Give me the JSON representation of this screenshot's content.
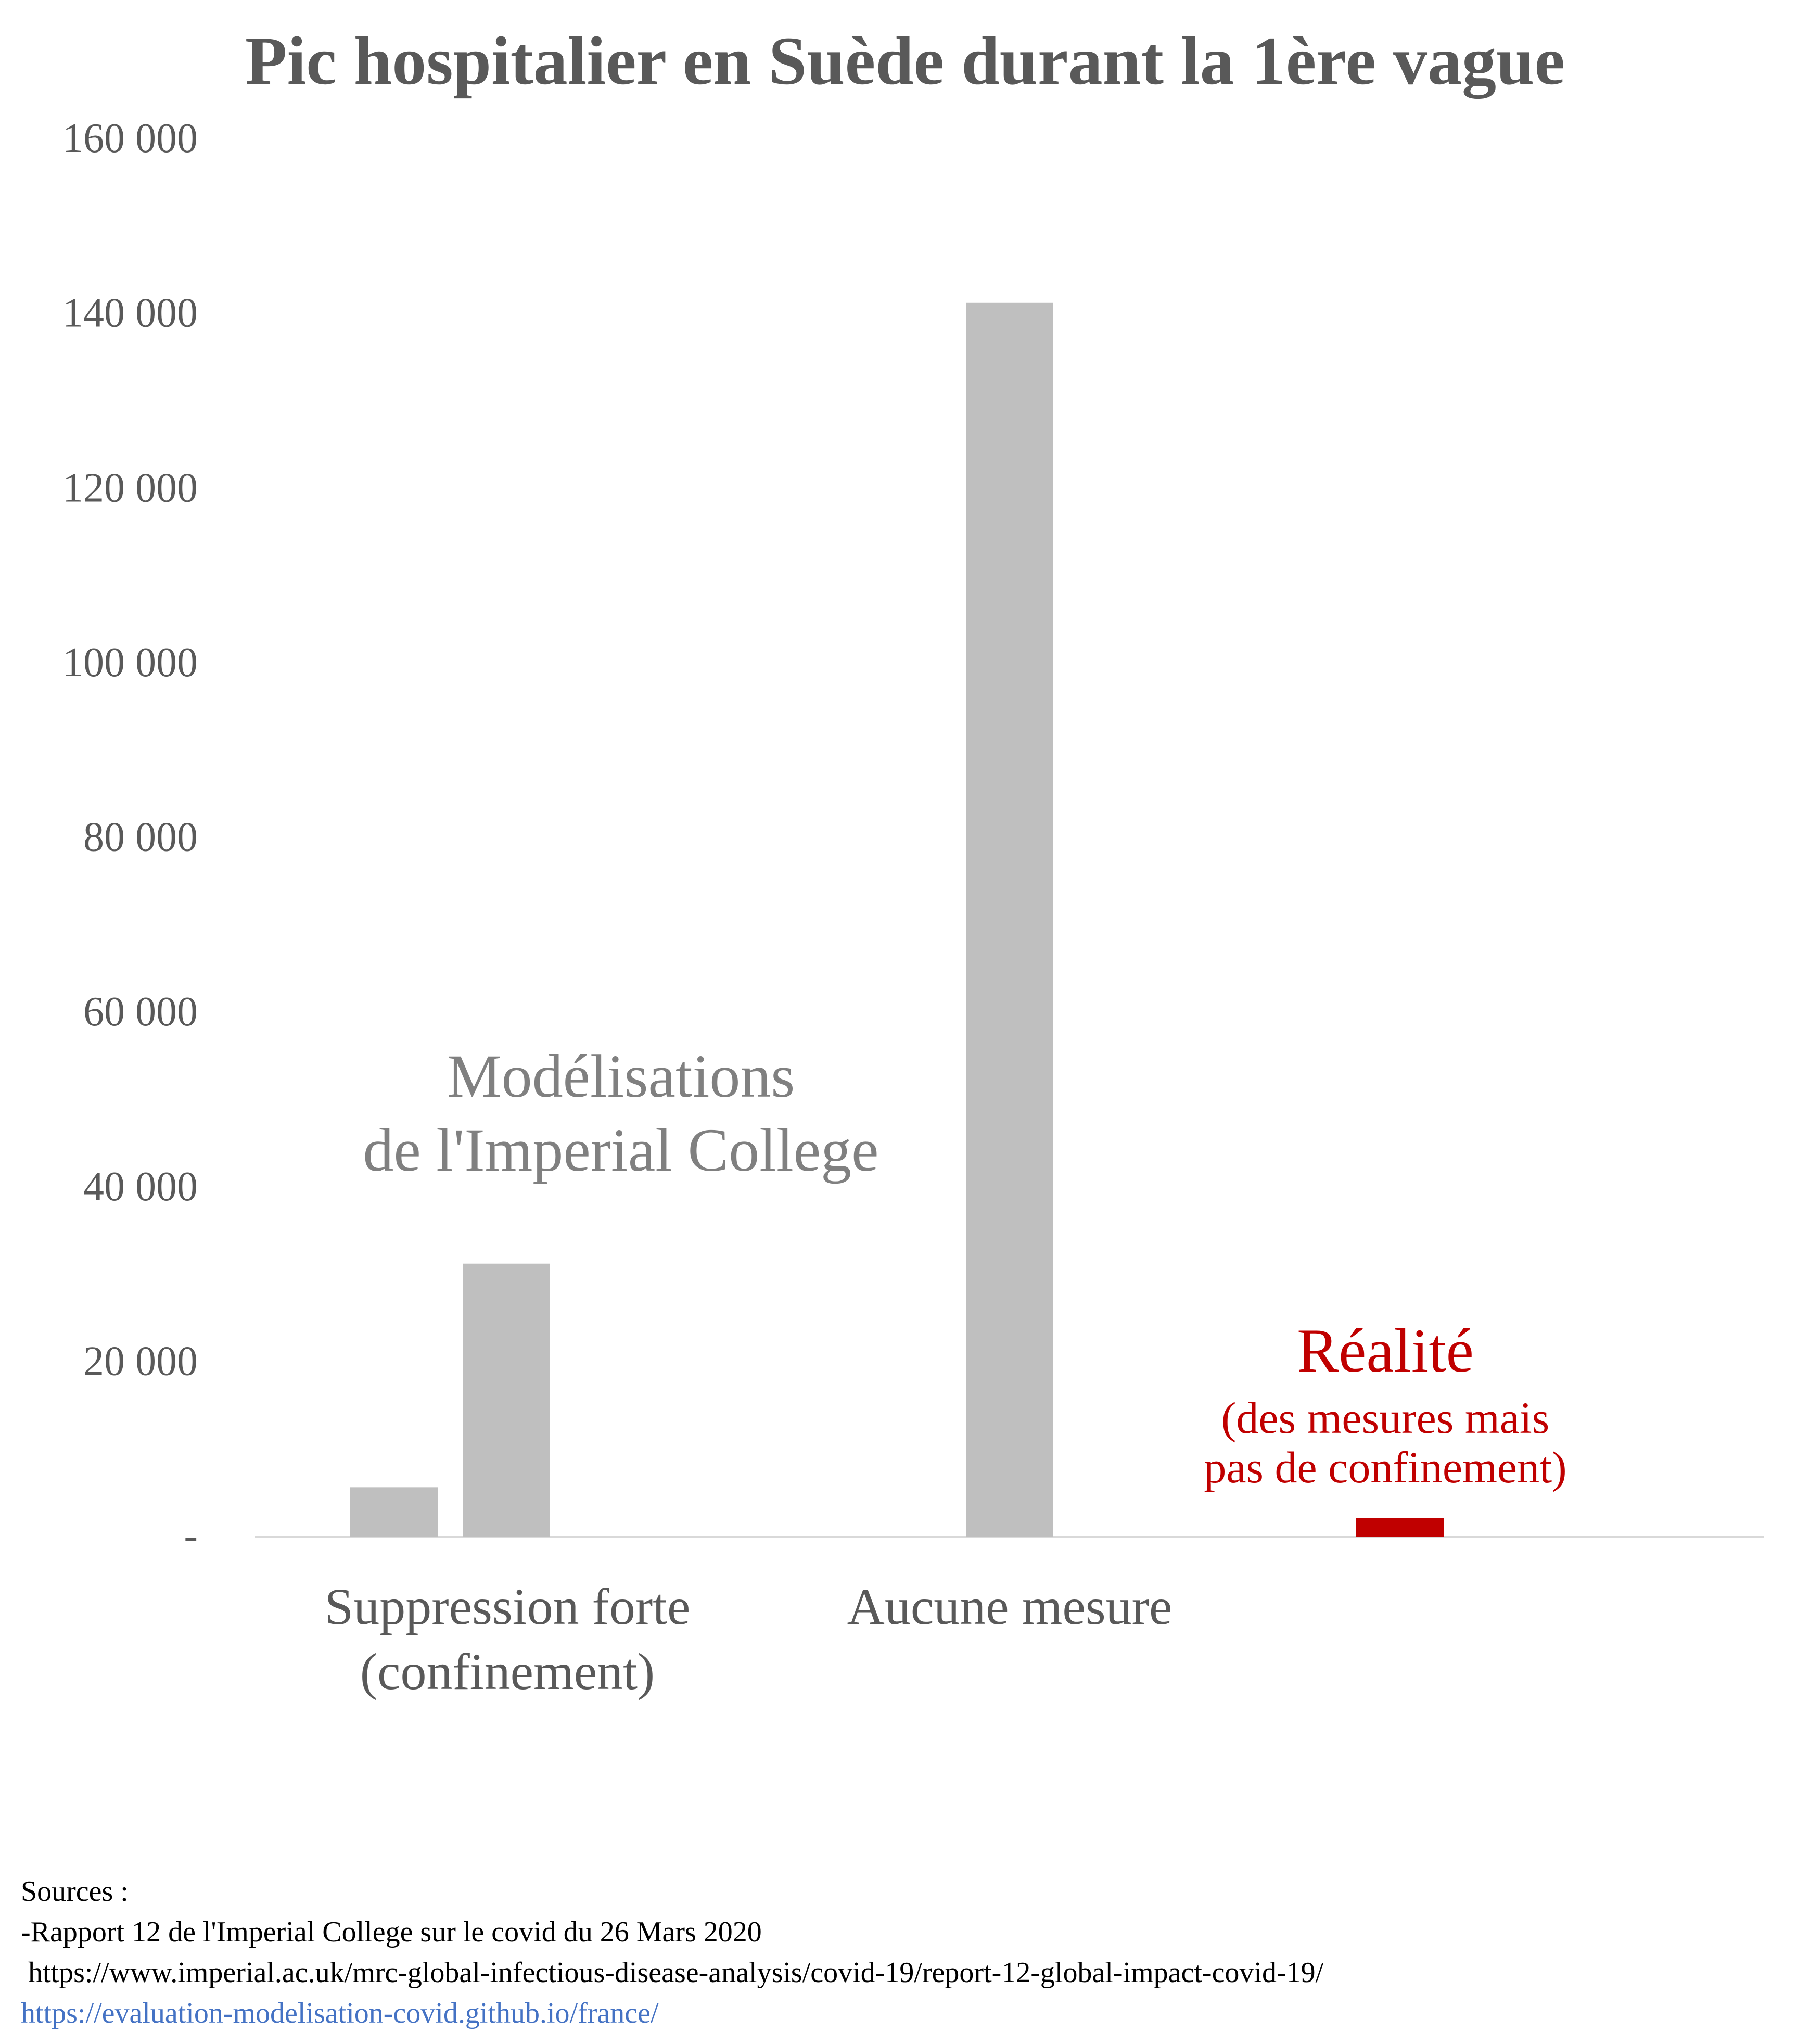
{
  "chart_data": {
    "type": "bar",
    "title": "Pic hospitalier en Suède durant la 1ère vague",
    "xlabel": "",
    "ylabel": "",
    "ylim": [
      0,
      160000
    ],
    "yticks": [
      {
        "value": 0,
        "label": "-"
      },
      {
        "value": 20000,
        "label": "20 000"
      },
      {
        "value": 40000,
        "label": "40 000"
      },
      {
        "value": 60000,
        "label": "60 000"
      },
      {
        "value": 80000,
        "label": "80 000"
      },
      {
        "value": 100000,
        "label": "100 000"
      },
      {
        "value": 120000,
        "label": "120 000"
      },
      {
        "value": 140000,
        "label": "140 000"
      },
      {
        "value": 160000,
        "label": "160 000"
      }
    ],
    "categories": [
      "Suppression forte (confinement)",
      "Aucune mesure",
      "Réalité"
    ],
    "category_label_lines": [
      [
        "Suppression forte",
        "(confinement)"
      ],
      [
        "Aucune mesure"
      ],
      []
    ],
    "bars": [
      {
        "category": 0,
        "slot": 0,
        "value": 5700,
        "color": "#bfbfbf"
      },
      {
        "category": 0,
        "slot": 1,
        "value": 31300,
        "color": "#bfbfbf"
      },
      {
        "category": 1,
        "slot": 0,
        "value": 141300,
        "color": "#bfbfbf"
      },
      {
        "category": 2,
        "slot": 0,
        "value": 2200,
        "color": "#c00000"
      }
    ],
    "annotations": {
      "model_lines": [
        "Modélisations",
        "de l'Imperial College"
      ],
      "reality_title": "Réalité",
      "reality_sub_lines": [
        "(des mesures mais",
        "pas de confinement)"
      ]
    },
    "colors": {
      "model": "#bfbfbf",
      "reality": "#c00000",
      "axis_text": "#595959",
      "annotation_gray": "#808080"
    }
  },
  "sources": {
    "heading": "Sources :",
    "line1": "-Rapport 12 de l'Imperial College sur le covid du 26 Mars 2020",
    "line2": " https://www.imperial.ac.uk/mrc-global-infectious-disease-analysis/covid-19/report-12-global-impact-covid-19/",
    "link": "https://evaluation-modelisation-covid.github.io/france/"
  }
}
